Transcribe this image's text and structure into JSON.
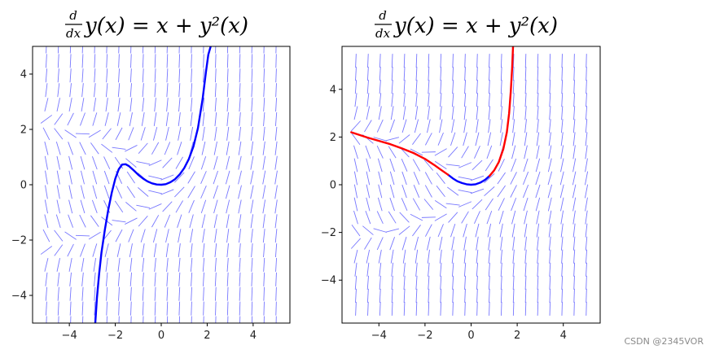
{
  "figure": {
    "watermark": "CSDN @2345VOR"
  },
  "chart_data": [
    {
      "type": "line",
      "subtype": "direction-field",
      "title": {
        "frac_num": "d",
        "frac_den": "dx",
        "expr": "y(x) = x + y²(x)"
      },
      "xlabel": "",
      "ylabel": "",
      "xlim": [
        -5.6,
        5.6
      ],
      "ylim": [
        -5.0,
        5.0
      ],
      "xticks": [
        -4,
        -2,
        0,
        2,
        4
      ],
      "yticks": [
        -4,
        -2,
        0,
        2,
        4
      ],
      "xtick_labels": [
        "−4",
        "−2",
        "0",
        "2",
        "4"
      ],
      "ytick_labels": [
        "−4",
        "−2",
        "0",
        "2",
        "4"
      ],
      "field": {
        "equation": "dy/dx = x + y^2",
        "x_range": [
          -5,
          5
        ],
        "y_range": [
          -5,
          5
        ],
        "n": 20,
        "color": "#7777ff"
      },
      "series": [
        {
          "color": "#0000ff",
          "x": [
            -2.87,
            -2.8,
            -2.7,
            -2.6,
            -2.45,
            -2.3,
            -2.15,
            -2.0,
            -1.85,
            -1.7,
            -1.55,
            -1.4,
            -1.2,
            -1.0,
            -0.8,
            -0.6,
            -0.4,
            -0.2,
            0.0,
            0.2,
            0.4,
            0.6,
            0.8,
            1.0,
            1.2,
            1.4,
            1.6,
            1.8,
            1.95,
            2.05,
            2.15
          ],
          "y": [
            -5.0,
            -4.1,
            -3.2,
            -2.45,
            -1.6,
            -0.88,
            -0.28,
            0.22,
            0.56,
            0.73,
            0.74,
            0.67,
            0.52,
            0.36,
            0.23,
            0.12,
            0.05,
            0.01,
            0.0,
            0.02,
            0.09,
            0.2,
            0.37,
            0.6,
            0.93,
            1.38,
            2.05,
            3.1,
            4.1,
            4.7,
            5.0
          ]
        }
      ]
    },
    {
      "type": "line",
      "subtype": "direction-field",
      "title": {
        "frac_num": "d",
        "frac_den": "dx",
        "expr": "y(x) = x + y²(x)"
      },
      "xlabel": "",
      "ylabel": "",
      "xlim": [
        -5.6,
        5.6
      ],
      "ylim": [
        -5.8,
        5.8
      ],
      "xticks": [
        -4,
        -2,
        0,
        2,
        4
      ],
      "yticks": [
        -4,
        -2,
        0,
        2,
        4
      ],
      "xtick_labels": [
        "−4",
        "−2",
        "0",
        "2",
        "4"
      ],
      "ytick_labels": [
        "−4",
        "−2",
        "0",
        "2",
        "4"
      ],
      "field": {
        "equation": "dy/dx = x + y^2",
        "x_range": [
          -5,
          5
        ],
        "y_range": [
          -5.2,
          5.2
        ],
        "n": 20,
        "color": "#7777ff"
      },
      "series": [
        {
          "color": "#0000ff",
          "x": [
            -1.0,
            -0.8,
            -0.6,
            -0.4,
            -0.2,
            0.0,
            0.2,
            0.4,
            0.6,
            0.8
          ],
          "y": [
            0.42,
            0.27,
            0.15,
            0.07,
            0.02,
            0.0,
            0.02,
            0.09,
            0.2,
            0.37
          ]
        },
        {
          "color": "#ff0000",
          "x": [
            -5.2,
            -4.5,
            -4.0,
            -3.5,
            -3.0,
            -2.5,
            -2.0,
            -1.6,
            -1.3,
            -1.0
          ],
          "y": [
            2.2,
            1.98,
            1.84,
            1.7,
            1.52,
            1.33,
            1.08,
            0.83,
            0.62,
            0.42
          ]
        },
        {
          "color": "#ff0000",
          "x": [
            0.8,
            1.0,
            1.2,
            1.4,
            1.55,
            1.65,
            1.72,
            1.78,
            1.82
          ],
          "y": [
            0.37,
            0.6,
            0.95,
            1.5,
            2.2,
            3.0,
            3.9,
            4.9,
            5.8
          ]
        }
      ]
    }
  ]
}
